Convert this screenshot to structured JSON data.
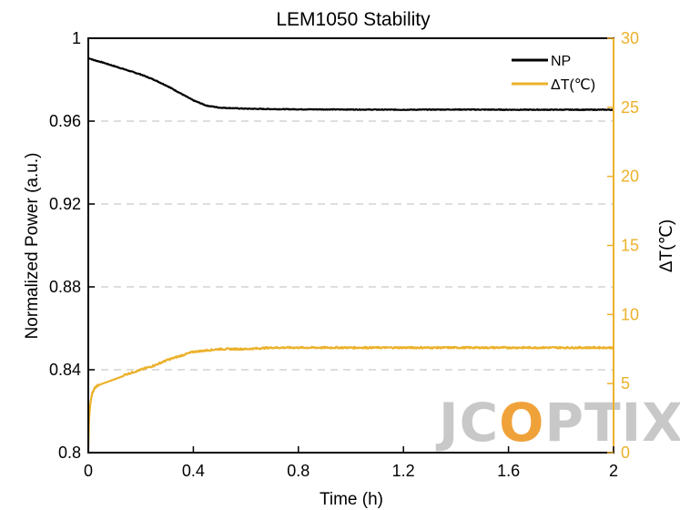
{
  "chart_data": {
    "type": "line",
    "title": "LEM1050 Stability",
    "xlabel": "Time (h)",
    "ylabel": "Normalized Power (a.u.)",
    "y2label": "ΔT(℃)",
    "xlim": [
      0,
      2
    ],
    "ylim": [
      0.8,
      1
    ],
    "y2lim": [
      0,
      30
    ],
    "x_ticks": [
      "0",
      "0.4",
      "0.8",
      "1.2",
      "1.6",
      "2"
    ],
    "x_tick_values": [
      0,
      0.4,
      0.8,
      1.2,
      1.6,
      2
    ],
    "y_ticks": [
      "0.8",
      "0.84",
      "0.88",
      "0.92",
      "0.96",
      "1"
    ],
    "y_tick_values": [
      0.8,
      0.84,
      0.88,
      0.92,
      0.96,
      1.0
    ],
    "y2_ticks": [
      "0",
      "5",
      "10",
      "15",
      "20",
      "25",
      "30"
    ],
    "y2_tick_values": [
      0,
      5,
      10,
      15,
      20,
      25,
      30
    ],
    "grid": "horizontal dashed at left-axis ticks",
    "legend_position": "top-right",
    "series": [
      {
        "name": "NP",
        "axis": "left",
        "color": "#000000",
        "x": [
          0,
          0.02,
          0.05,
          0.1,
          0.15,
          0.2,
          0.25,
          0.3,
          0.35,
          0.4,
          0.45,
          0.5,
          0.6,
          0.7,
          0.8,
          1.0,
          1.2,
          1.4,
          1.6,
          1.8,
          2.0
        ],
        "y": [
          0.9905,
          0.9895,
          0.9885,
          0.9865,
          0.9845,
          0.9825,
          0.98,
          0.977,
          0.9735,
          0.97,
          0.9675,
          0.9665,
          0.966,
          0.9658,
          0.9657,
          0.9656,
          0.9655,
          0.9656,
          0.9655,
          0.9655,
          0.9655
        ]
      },
      {
        "name": "ΔT(℃)",
        "axis": "right",
        "color": "#EBB12B",
        "x": [
          0,
          0.003,
          0.008,
          0.015,
          0.025,
          0.04,
          0.06,
          0.1,
          0.15,
          0.2,
          0.25,
          0.3,
          0.35,
          0.4,
          0.45,
          0.5,
          0.6,
          0.7,
          0.8,
          1.0,
          1.2,
          1.4,
          1.6,
          1.8,
          2.0
        ],
        "y": [
          0.2,
          2.5,
          3.6,
          4.3,
          4.7,
          4.9,
          5.1,
          5.4,
          5.7,
          6.0,
          6.3,
          6.7,
          7.0,
          7.3,
          7.4,
          7.5,
          7.5,
          7.6,
          7.6,
          7.6,
          7.6,
          7.6,
          7.6,
          7.6,
          7.6
        ]
      }
    ]
  },
  "watermark": {
    "text": "JCOPTIX",
    "color": "#c8c8c8",
    "accent_color": "#f0a23a"
  }
}
